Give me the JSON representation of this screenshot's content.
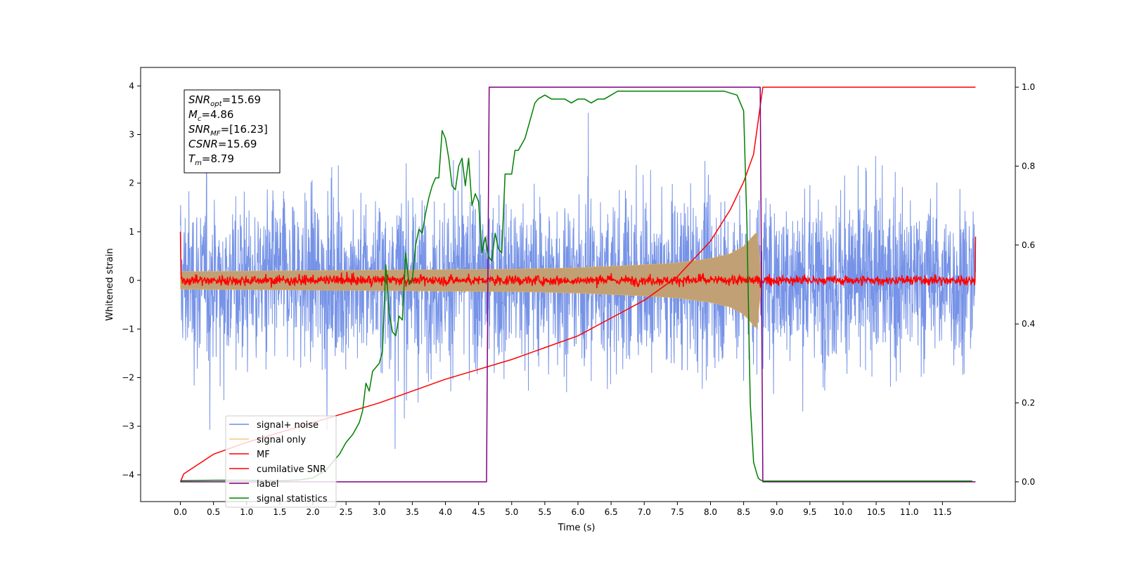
{
  "chart_data": {
    "type": "line",
    "xlabel": "Time (s)",
    "ylabel": "Whitened strain",
    "xlim": [
      -0.6,
      12.6
    ],
    "ylim": [
      -4.55,
      4.38
    ],
    "y2lim": [
      -0.05,
      1.05
    ],
    "x_ticks": [
      "0.0",
      "0.5",
      "1.0",
      "1.5",
      "2.0",
      "2.5",
      "3.0",
      "3.5",
      "4.0",
      "4.5",
      "5.0",
      "5.5",
      "6.0",
      "6.5",
      "7.0",
      "7.5",
      "8.0",
      "8.5",
      "9.0",
      "9.5",
      "10.0",
      "10.5",
      "11.0",
      "11.5"
    ],
    "y_ticks": [
      "4",
      "3",
      "2",
      "1",
      "0",
      "−1",
      "−2",
      "−3",
      "−4"
    ],
    "y2_ticks": [
      "1.0",
      "0.8",
      "0.6",
      "0.4",
      "0.2",
      "0.0"
    ],
    "grid": false,
    "legend_position": "lower-left",
    "annotation": {
      "lines": [
        {
          "main": "SNR",
          "sub": "opt",
          "value": "=15.69"
        },
        {
          "main": "M",
          "sub": "c",
          "value": "=4.86"
        },
        {
          "main": "SNR",
          "sub": "MF",
          "value": "=[16.23]"
        },
        {
          "main": "CSNR",
          "sub": "",
          "value": "=15.69"
        },
        {
          "main": "T",
          "sub": "m",
          "value": "=8.79"
        }
      ]
    },
    "series": [
      {
        "name": "signal+ noise",
        "color": "#6f8de6",
        "axis": "left",
        "kind": "noise",
        "x_range": [
          0,
          12
        ],
        "envelope_approx": [
          -2.2,
          2.2
        ],
        "peak_min": -4.1,
        "peak_max": 3.97
      },
      {
        "name": "signal only",
        "color": "#f5b342",
        "fill_color": "#c0a074",
        "axis": "left",
        "kind": "chirp",
        "x_range": [
          0,
          8.76
        ],
        "amplitude": [
          [
            0,
            0.18
          ],
          [
            2,
            0.2
          ],
          [
            4,
            0.22
          ],
          [
            5,
            0.23
          ],
          [
            6,
            0.26
          ],
          [
            7,
            0.32
          ],
          [
            7.5,
            0.36
          ],
          [
            8,
            0.45
          ],
          [
            8.3,
            0.55
          ],
          [
            8.5,
            0.7
          ],
          [
            8.7,
            1.0
          ],
          [
            8.76,
            0.2
          ]
        ]
      },
      {
        "name": "MF",
        "color": "#ff0000",
        "axis": "left",
        "kind": "mf",
        "x_range": [
          0,
          12
        ],
        "start_value": 1.0,
        "end_value": 0.9,
        "noise_level": 0.05
      },
      {
        "name": "cumilative SNR",
        "color": "#ff0000",
        "axis": "right",
        "x": [
          0,
          0.05,
          0.5,
          1,
          1.5,
          2,
          2.5,
          3,
          3.5,
          4,
          4.5,
          5,
          5.5,
          6,
          6.5,
          7,
          7.5,
          8,
          8.3,
          8.5,
          8.65,
          8.79,
          12
        ],
        "values": [
          0.0,
          0.02,
          0.07,
          0.1,
          0.125,
          0.15,
          0.175,
          0.2,
          0.23,
          0.26,
          0.285,
          0.31,
          0.34,
          0.37,
          0.415,
          0.46,
          0.52,
          0.61,
          0.69,
          0.76,
          0.83,
          1.0,
          1.0
        ]
      },
      {
        "name": "label",
        "color": "#800080",
        "axis": "right",
        "x": [
          0,
          4.62,
          4.66,
          8.75,
          8.79,
          12
        ],
        "values": [
          0,
          0,
          1,
          1,
          0,
          0
        ]
      },
      {
        "name": "signal statistics",
        "color": "#008000",
        "axis": "right",
        "x": [
          0,
          0.5,
          1,
          1.5,
          1.8,
          2,
          2.1,
          2.2,
          2.3,
          2.35,
          2.4,
          2.5,
          2.6,
          2.7,
          2.75,
          2.8,
          2.85,
          2.9,
          3.0,
          3.05,
          3.1,
          3.15,
          3.2,
          3.25,
          3.3,
          3.35,
          3.4,
          3.45,
          3.5,
          3.55,
          3.6,
          3.65,
          3.7,
          3.75,
          3.8,
          3.85,
          3.9,
          3.95,
          4.0,
          4.05,
          4.1,
          4.15,
          4.2,
          4.25,
          4.3,
          4.35,
          4.4,
          4.45,
          4.5,
          4.55,
          4.6,
          4.65,
          4.7,
          4.75,
          4.8,
          4.85,
          4.9,
          5.0,
          5.05,
          5.1,
          5.2,
          5.3,
          5.35,
          5.4,
          5.5,
          5.6,
          5.7,
          5.8,
          5.9,
          6.0,
          6.1,
          6.2,
          6.3,
          6.4,
          6.5,
          6.6,
          6.7,
          6.8,
          6.9,
          7.0,
          7.2,
          7.4,
          7.6,
          7.8,
          8.0,
          8.2,
          8.4,
          8.5,
          8.55,
          8.6,
          8.65,
          8.7,
          8.72,
          8.75,
          8.78,
          8.8,
          8.85,
          9.0,
          10,
          11,
          11.95
        ],
        "values": [
          0.003,
          0.004,
          0.004,
          0.003,
          0.005,
          0.01,
          0.02,
          0.03,
          0.05,
          0.06,
          0.07,
          0.1,
          0.12,
          0.15,
          0.18,
          0.25,
          0.23,
          0.28,
          0.3,
          0.33,
          0.55,
          0.43,
          0.38,
          0.37,
          0.42,
          0.41,
          0.58,
          0.5,
          0.51,
          0.6,
          0.64,
          0.63,
          0.68,
          0.72,
          0.75,
          0.77,
          0.77,
          0.89,
          0.87,
          0.82,
          0.75,
          0.74,
          0.8,
          0.82,
          0.75,
          0.82,
          0.7,
          0.73,
          0.71,
          0.58,
          0.62,
          0.57,
          0.56,
          0.63,
          0.59,
          0.58,
          0.78,
          0.78,
          0.84,
          0.84,
          0.87,
          0.93,
          0.96,
          0.97,
          0.98,
          0.97,
          0.97,
          0.97,
          0.96,
          0.97,
          0.97,
          0.96,
          0.97,
          0.97,
          0.98,
          0.99,
          0.99,
          0.99,
          0.99,
          0.99,
          0.99,
          0.99,
          0.99,
          0.99,
          0.99,
          0.99,
          0.98,
          0.94,
          0.65,
          0.2,
          0.05,
          0.02,
          0.01,
          0.005,
          0.003,
          0.002,
          0.002,
          0.002,
          0.002,
          0.002,
          0.002
        ]
      }
    ]
  }
}
